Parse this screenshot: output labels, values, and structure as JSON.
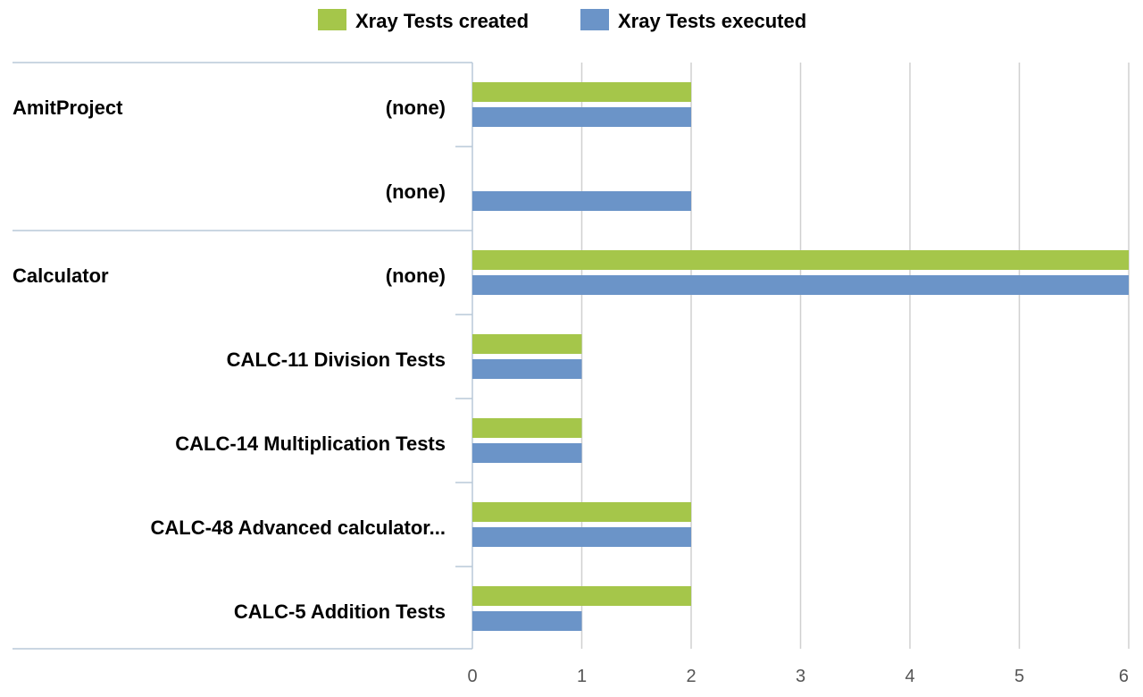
{
  "chart_data": {
    "type": "bar",
    "orientation": "horizontal",
    "legend": {
      "placement": "top-center",
      "items": [
        {
          "label": "Xray Tests created",
          "color": "#a5c64a"
        },
        {
          "label": "Xray Tests executed",
          "color": "#6b94c8"
        }
      ]
    },
    "groups": [
      {
        "label": "AmitProject",
        "rows": [
          0,
          1
        ]
      },
      {
        "label": "Calculator",
        "rows": [
          2,
          3,
          4,
          5,
          6
        ]
      }
    ],
    "categories": [
      "(none)",
      "(none)",
      "(none)",
      "CALC-11 Division Tests",
      "CALC-14 Multiplication Tests",
      "CALC-48 Advanced calculator...",
      "CALC-5 Addition Tests"
    ],
    "series": [
      {
        "name": "Xray Tests created",
        "color": "#a5c64a",
        "values": [
          2,
          0,
          6,
          1,
          1,
          2,
          2
        ]
      },
      {
        "name": "Xray Tests executed",
        "color": "#6b94c8",
        "values": [
          2,
          2,
          6,
          1,
          1,
          2,
          1
        ]
      }
    ],
    "xlim": [
      0,
      6
    ],
    "xticks": [
      0,
      1,
      2,
      3,
      4,
      5,
      6
    ],
    "grid": true
  }
}
